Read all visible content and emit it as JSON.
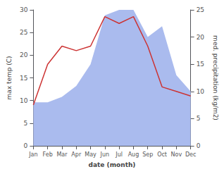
{
  "chart_data": {
    "type": "line",
    "xlabel": "date (month)",
    "ylabel": "max temp (C)",
    "y2label": "med. precipitation (kg/m2)",
    "categories": [
      "Jan",
      "Feb",
      "Mar",
      "Apr",
      "May",
      "Jun",
      "Jul",
      "Aug",
      "Sep",
      "Oct",
      "Nov",
      "Dec"
    ],
    "series": [
      {
        "type": "area",
        "color": "#aabbee",
        "axis": "y2",
        "values": [
          8,
          8,
          9,
          11,
          15,
          24,
          25,
          25,
          20,
          22,
          13,
          10
        ]
      },
      {
        "type": "line",
        "color": "#cc3333",
        "axis": "y",
        "values": [
          9,
          18,
          22,
          21,
          22,
          28.5,
          27,
          28.5,
          22,
          13,
          12,
          11
        ]
      }
    ],
    "ylim": [
      0,
      30
    ],
    "yticks": [
      0,
      5,
      10,
      15,
      20,
      25,
      30
    ],
    "y2lim": [
      0,
      25
    ],
    "y2ticks": [
      0,
      5,
      10,
      15,
      20,
      25
    ],
    "grid": false
  }
}
